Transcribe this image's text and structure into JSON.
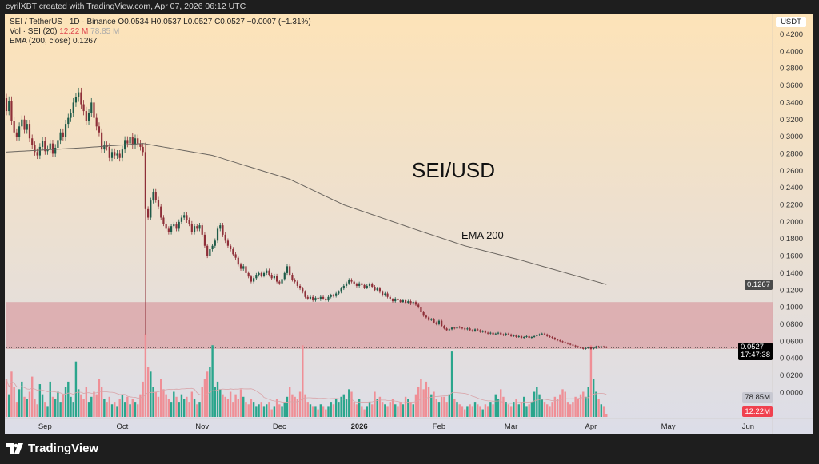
{
  "header": {
    "credit": "cyrilXBT created with TradingView.com, Apr 07, 2026 06:12 UTC"
  },
  "legend": {
    "symbol_line": "SEI / TetherUS · 1D · Binance  O0.0534  H0.0537  L0.0527  C0.0527  −0.0007 (−1.31%)",
    "vol_label": "Vol · SEI (20)",
    "vol_value": "12.22 M",
    "vol_ma_value": "78.85 M",
    "ema_label": "EMA (200, close)",
    "ema_value": "0.1267"
  },
  "annotations": {
    "pair_title": "SEI/USD",
    "ema_label": "EMA 200"
  },
  "axis": {
    "currency": "USDT",
    "price_ticks": [
      "0.4200",
      "0.4000",
      "0.3800",
      "0.3600",
      "0.3400",
      "0.3200",
      "0.3000",
      "0.2800",
      "0.2600",
      "0.2400",
      "0.2200",
      "0.2000",
      "0.1800",
      "0.1600",
      "0.1400",
      "0.1200",
      "0.1000",
      "0.0800",
      "0.0600",
      "0.0400",
      "0.0200",
      "0.0000"
    ],
    "ema_tag": "0.1267",
    "price_tag": "0.0527",
    "countdown": "17:47:38",
    "vol_ma_tag": "78.85M",
    "vol_tag": "12.22M",
    "months": [
      {
        "label": "Sep",
        "day": 15
      },
      {
        "label": "Oct",
        "day": 45
      },
      {
        "label": "Nov",
        "day": 76
      },
      {
        "label": "Dec",
        "day": 106
      },
      {
        "label": "2026",
        "day": 137,
        "bold": true
      },
      {
        "label": "Feb",
        "day": 168
      },
      {
        "label": "Mar",
        "day": 196
      },
      {
        "label": "Apr",
        "day": 227
      },
      {
        "label": "May",
        "day": 257
      },
      {
        "label": "Jun",
        "day": 288
      }
    ]
  },
  "footer": {
    "brand": "TradingView"
  },
  "colors": {
    "up_candle": "#1e5a48",
    "down_candle": "#8e2f38",
    "up_volume": "#2aa58c",
    "down_volume": "#ef8f96",
    "ema": "#6b6660",
    "zone": "#d9a0a4",
    "bg_top": "#fde3b8",
    "bg_bottom": "#dcdde8"
  },
  "chart_data": {
    "type": "candlestick",
    "first_open": 0.345,
    "price_range": [
      0.0,
      0.42
    ],
    "close": [
      0.33,
      0.342,
      0.318,
      0.305,
      0.3,
      0.312,
      0.32,
      0.308,
      0.315,
      0.298,
      0.29,
      0.282,
      0.278,
      0.288,
      0.295,
      0.283,
      0.285,
      0.292,
      0.28,
      0.287,
      0.296,
      0.305,
      0.3,
      0.315,
      0.322,
      0.328,
      0.34,
      0.346,
      0.352,
      0.338,
      0.33,
      0.318,
      0.328,
      0.34,
      0.322,
      0.312,
      0.305,
      0.285,
      0.29,
      0.288,
      0.275,
      0.282,
      0.278,
      0.28,
      0.275,
      0.285,
      0.296,
      0.292,
      0.3,
      0.29,
      0.298,
      0.292,
      0.288,
      0.282,
      0.215,
      0.205,
      0.225,
      0.235,
      0.226,
      0.218,
      0.205,
      0.198,
      0.192,
      0.188,
      0.195,
      0.197,
      0.192,
      0.2,
      0.205,
      0.208,
      0.202,
      0.198,
      0.188,
      0.195,
      0.192,
      0.196,
      0.185,
      0.172,
      0.16,
      0.168,
      0.172,
      0.178,
      0.192,
      0.196,
      0.185,
      0.178,
      0.172,
      0.168,
      0.162,
      0.158,
      0.15,
      0.145,
      0.148,
      0.14,
      0.136,
      0.13,
      0.134,
      0.138,
      0.14,
      0.137,
      0.14,
      0.143,
      0.138,
      0.134,
      0.137,
      0.13,
      0.128,
      0.133,
      0.14,
      0.148,
      0.138,
      0.132,
      0.13,
      0.125,
      0.122,
      0.118,
      0.112,
      0.11,
      0.112,
      0.108,
      0.111,
      0.109,
      0.112,
      0.11,
      0.108,
      0.112,
      0.114,
      0.113,
      0.116,
      0.118,
      0.122,
      0.125,
      0.128,
      0.132,
      0.13,
      0.127,
      0.125,
      0.128,
      0.126,
      0.123,
      0.125,
      0.127,
      0.124,
      0.12,
      0.122,
      0.118,
      0.114,
      0.116,
      0.112,
      0.109,
      0.107,
      0.11,
      0.108,
      0.106,
      0.108,
      0.105,
      0.107,
      0.104,
      0.106,
      0.103,
      0.1,
      0.094,
      0.09,
      0.088,
      0.085,
      0.086,
      0.082,
      0.08,
      0.084,
      0.078,
      0.075,
      0.073,
      0.074,
      0.076,
      0.075,
      0.077,
      0.076,
      0.075,
      0.074,
      0.075,
      0.073,
      0.072,
      0.074,
      0.073,
      0.071,
      0.072,
      0.07,
      0.069,
      0.07,
      0.068,
      0.069,
      0.07,
      0.068,
      0.067,
      0.069,
      0.068,
      0.066,
      0.067,
      0.065,
      0.066,
      0.064,
      0.065,
      0.066,
      0.064,
      0.065,
      0.066,
      0.067,
      0.068,
      0.069,
      0.068,
      0.066,
      0.065,
      0.064,
      0.062,
      0.061,
      0.06,
      0.059,
      0.058,
      0.057,
      0.056,
      0.055,
      0.054,
      0.053,
      0.052,
      0.051,
      0.052,
      0.053,
      0.051,
      0.052,
      0.054,
      0.053,
      0.054,
      0.0534,
      0.0527
    ],
    "notable_wicks": [
      {
        "day": 54,
        "low": 0.068,
        "high": 0.293
      }
    ],
    "volume_millions": [
      150,
      90,
      180,
      120,
      60,
      110,
      140,
      80,
      70,
      100,
      160,
      70,
      50,
      130,
      90,
      60,
      40,
      140,
      80,
      70,
      100,
      60,
      90,
      120,
      140,
      80,
      60,
      220,
      110,
      90,
      70,
      120,
      60,
      80,
      100,
      90,
      150,
      120,
      70,
      60,
      80,
      50,
      60,
      40,
      70,
      90,
      60,
      80,
      50,
      70,
      60,
      50,
      90,
      140,
      330,
      200,
      180,
      120,
      100,
      80,
      150,
      110,
      90,
      70,
      60,
      100,
      80,
      60,
      90,
      70,
      80,
      60,
      100,
      70,
      50,
      60,
      120,
      150,
      180,
      200,
      285,
      120,
      140,
      110,
      90,
      80,
      70,
      100,
      60,
      90,
      70,
      110,
      80,
      60,
      50,
      70,
      60,
      40,
      50,
      60,
      40,
      50,
      60,
      30,
      40,
      70,
      50,
      40,
      60,
      80,
      120,
      90,
      80,
      70,
      100,
      285,
      90,
      60,
      50,
      40,
      40,
      30,
      50,
      40,
      30,
      40,
      60,
      50,
      70,
      60,
      80,
      90,
      70,
      110,
      100,
      60,
      50,
      70,
      40,
      30,
      40,
      60,
      50,
      100,
      70,
      80,
      60,
      50,
      40,
      60,
      70,
      50,
      40,
      60,
      50,
      80,
      70,
      60,
      50,
      90,
      120,
      150,
      110,
      140,
      120,
      90,
      100,
      70,
      60,
      80,
      80,
      60,
      90,
      260,
      70,
      60,
      50,
      40,
      30,
      40,
      50,
      40,
      60,
      50,
      40,
      30,
      50,
      40,
      60,
      50,
      90,
      70,
      110,
      80,
      60,
      50,
      40,
      60,
      70,
      50,
      60,
      80,
      40,
      50,
      60,
      100,
      120,
      90,
      70,
      60,
      50,
      40,
      60,
      80,
      70,
      90,
      110,
      100,
      60,
      50,
      60,
      80,
      70,
      90,
      100,
      80,
      120,
      285,
      150,
      100,
      70,
      50,
      40,
      12.22
    ],
    "ema200": [
      {
        "day": 0,
        "value": 0.282
      },
      {
        "day": 30,
        "value": 0.287
      },
      {
        "day": 53,
        "value": 0.292
      },
      {
        "day": 80,
        "value": 0.278
      },
      {
        "day": 110,
        "value": 0.25
      },
      {
        "day": 131,
        "value": 0.22
      },
      {
        "day": 160,
        "value": 0.19
      },
      {
        "day": 178,
        "value": 0.172
      },
      {
        "day": 200,
        "value": 0.155
      },
      {
        "day": 233,
        "value": 0.1267
      }
    ],
    "support_zone": [
      0.051,
      0.106
    ],
    "last_price": 0.0527
  }
}
